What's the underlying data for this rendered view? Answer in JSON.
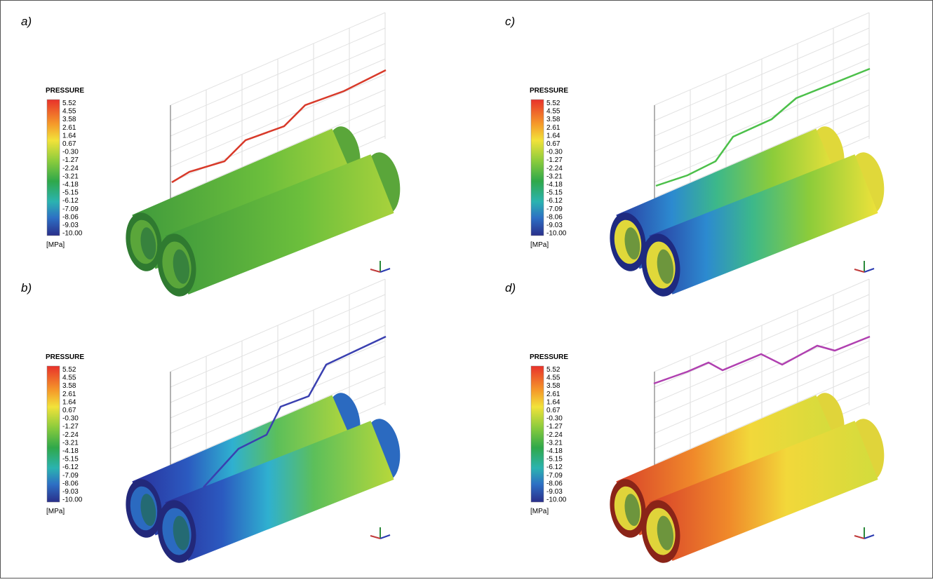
{
  "panels": [
    {
      "label": "a)"
    },
    {
      "label": "b)"
    },
    {
      "label": "c)"
    },
    {
      "label": "d)"
    }
  ],
  "legend": {
    "title": "PRESSURE",
    "ticks": [
      "5.52",
      "4.55",
      "3.58",
      "2.61",
      "1.64",
      "0.67",
      "-0.30",
      "-1.27",
      "-2.24",
      "-3.21",
      "-4.18",
      "-5.15",
      "-6.12",
      "-7.09",
      "-8.06",
      "-9.03",
      "-10.00"
    ],
    "unit": "[MPa]"
  }
}
